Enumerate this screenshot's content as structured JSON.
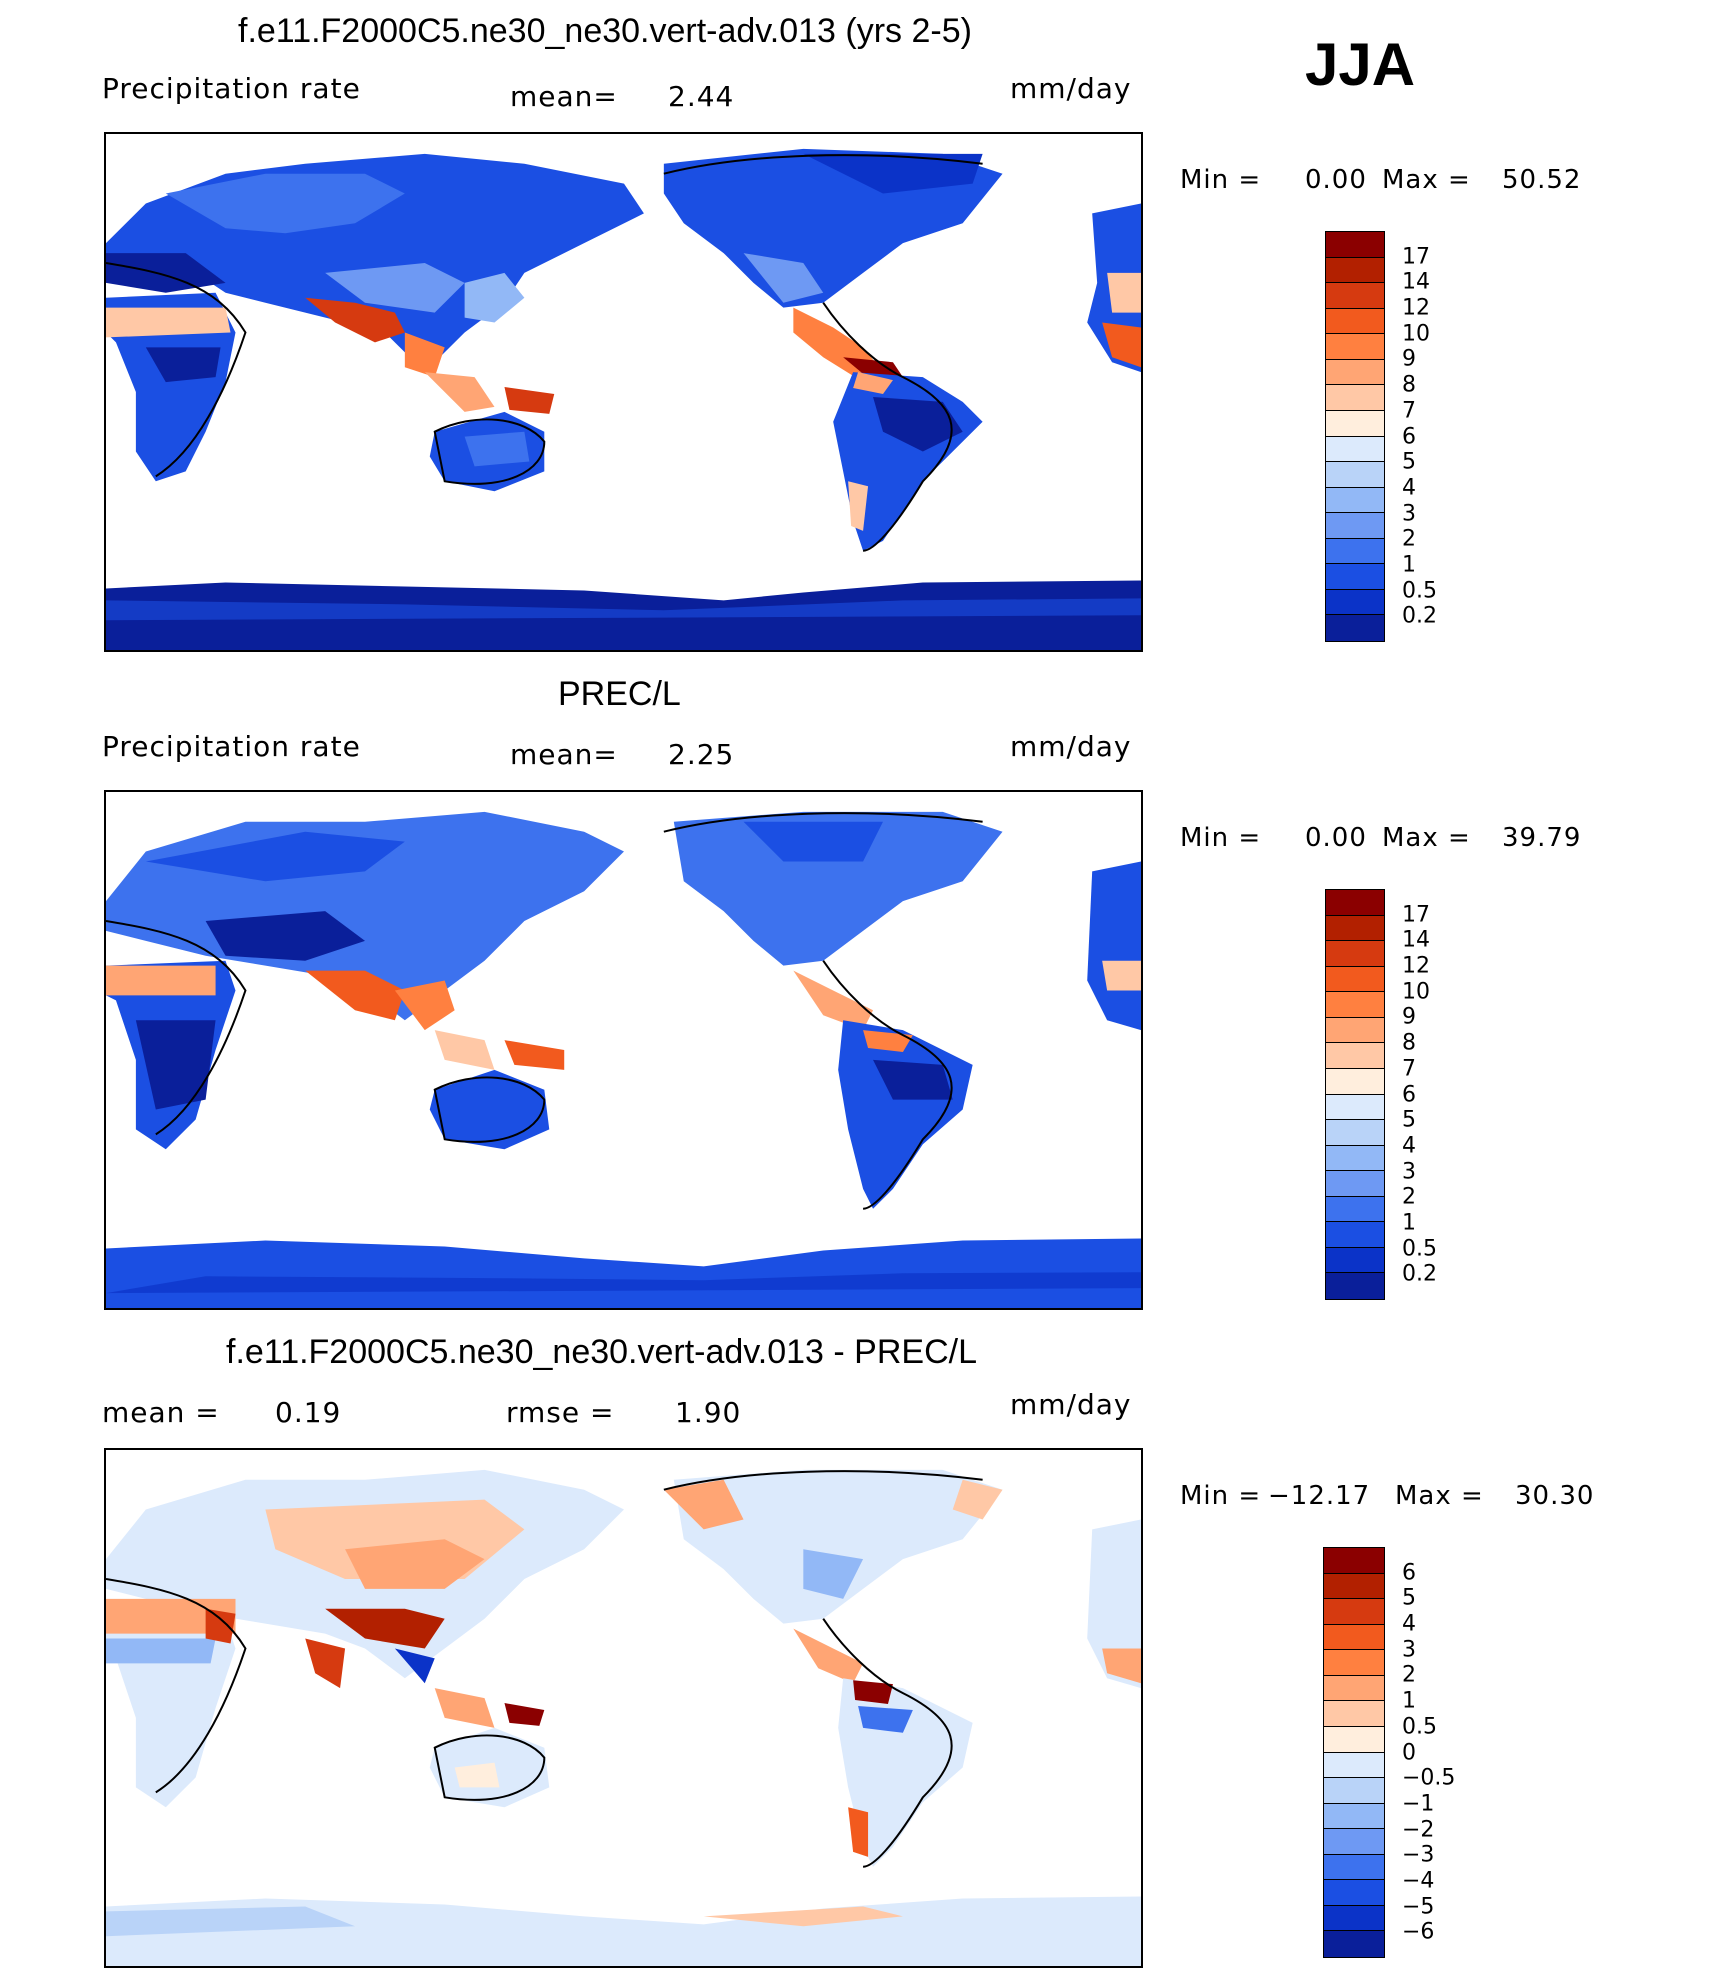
{
  "season": "JJA",
  "panels": [
    {
      "title": "f.e11.F2000C5.ne30_ne30.vert-adv.013 (yrs 2-5)",
      "left_label": "Precipitation rate",
      "center_label": "mean=",
      "center_value": "2.44",
      "units": "mm/day",
      "min_label": "Min =",
      "min_value": "0.00",
      "max_label": "Max =",
      "max_value": "50.52",
      "colorbar_ticks": [
        "17",
        "14",
        "12",
        "10",
        "9",
        "8",
        "7",
        "6",
        "5",
        "4",
        "3",
        "2",
        "1",
        "0.5",
        "0.2"
      ],
      "colorbar_colors": [
        "#8b0000",
        "#b22000",
        "#d63a10",
        "#f25a1e",
        "#ff8040",
        "#ffa574",
        "#ffc8a6",
        "#ffeedd",
        "#dceafc",
        "#b9d3f8",
        "#92b8f6",
        "#6e99f3",
        "#3d72ee",
        "#1b4fe3",
        "#0b33c8",
        "#0a1f9a"
      ]
    },
    {
      "title": "PREC/L",
      "left_label": "Precipitation rate",
      "center_label": "mean=",
      "center_value": "2.25",
      "units": "mm/day",
      "min_label": "Min =",
      "min_value": "0.00",
      "max_label": "Max =",
      "max_value": "39.79",
      "colorbar_ticks": [
        "17",
        "14",
        "12",
        "10",
        "9",
        "8",
        "7",
        "6",
        "5",
        "4",
        "3",
        "2",
        "1",
        "0.5",
        "0.2"
      ],
      "colorbar_colors": [
        "#8b0000",
        "#b22000",
        "#d63a10",
        "#f25a1e",
        "#ff8040",
        "#ffa574",
        "#ffc8a6",
        "#ffeedd",
        "#dceafc",
        "#b9d3f8",
        "#92b8f6",
        "#6e99f3",
        "#3d72ee",
        "#1b4fe3",
        "#0b33c8",
        "#0a1f9a"
      ]
    },
    {
      "title": "f.e11.F2000C5.ne30_ne30.vert-adv.013 - PREC/L",
      "left_label": "mean =",
      "left_value": "0.19",
      "center_label": "rmse =",
      "center_value": "1.90",
      "units": "mm/day",
      "min_label": "Min =",
      "min_value": "−12.17",
      "max_label": "Max =",
      "max_value": "30.30",
      "colorbar_ticks": [
        "6",
        "5",
        "4",
        "3",
        "2",
        "1",
        "0.5",
        "0",
        "−0.5",
        "−1",
        "−2",
        "−3",
        "−4",
        "−5",
        "−6"
      ],
      "colorbar_colors": [
        "#8b0000",
        "#b22000",
        "#d63a10",
        "#f25a1e",
        "#ff8040",
        "#ffa574",
        "#ffc8a6",
        "#ffeedd",
        "#dceafc",
        "#b9d3f8",
        "#92b8f6",
        "#6e99f3",
        "#3d72ee",
        "#1b4fe3",
        "#0b33c8",
        "#0a1f9a"
      ]
    }
  ]
}
